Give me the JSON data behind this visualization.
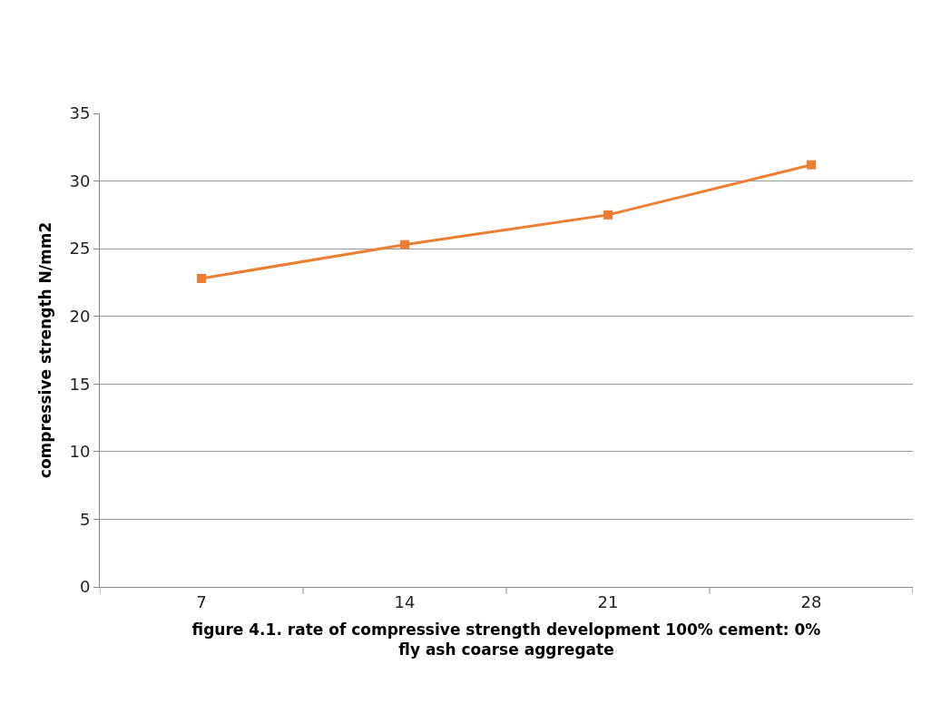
{
  "chart_data": {
    "type": "line",
    "xlabel": "figure 4.1. rate of compressive strength development 100% cement: 0%\nfly ash coarse aggregate",
    "ylabel": "compressive strength N/mm2",
    "categories": [
      "7",
      "14",
      "21",
      "28"
    ],
    "series": [
      {
        "color": "#ed7d31",
        "values": [
          22.8,
          25.3,
          27.5,
          31.2
        ]
      }
    ],
    "ylim": [
      0,
      35
    ],
    "yticks": [
      0,
      5,
      10,
      15,
      20,
      25,
      30,
      35
    ],
    "grid": "y",
    "legend": false,
    "marker": "square",
    "line_style": "solid"
  }
}
